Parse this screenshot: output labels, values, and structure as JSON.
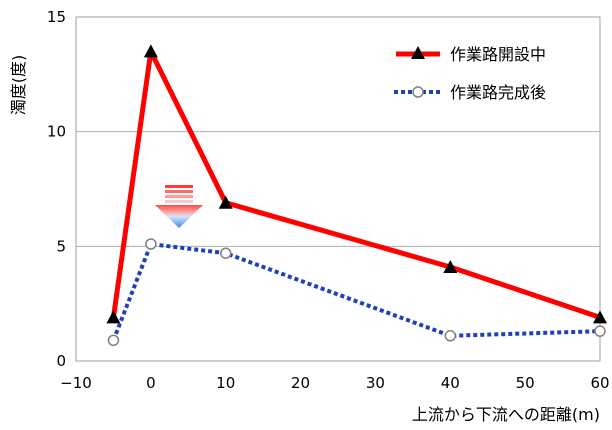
{
  "chart_data": {
    "type": "line",
    "xlabel": "上流から下流への距離(m)",
    "ylabel": "濁度(度)",
    "xlim": [
      -10,
      60
    ],
    "ylim": [
      0,
      15
    ],
    "xticks": [
      -10,
      0,
      10,
      20,
      30,
      40,
      50,
      60
    ],
    "yticks": [
      0,
      5,
      10,
      15
    ],
    "legend_position": "top-right",
    "series": [
      {
        "name": "作業路開設中",
        "color": "#ff0000",
        "marker": "triangle",
        "x": [
          -5,
          0,
          10,
          40,
          60
        ],
        "y": [
          1.9,
          13.5,
          6.9,
          4.1,
          1.9
        ]
      },
      {
        "name": "作業路完成後",
        "color": "#1f3fbf",
        "marker": "circle",
        "x": [
          -5,
          0,
          10,
          40,
          60
        ],
        "y": [
          0.9,
          5.1,
          4.7,
          1.1,
          1.3
        ]
      }
    ]
  }
}
